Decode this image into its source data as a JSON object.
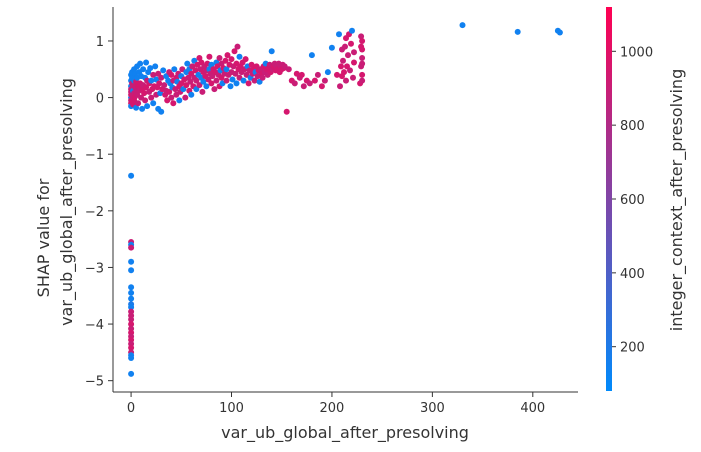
{
  "chart_data": {
    "type": "scatter",
    "title": "",
    "xlabel": "var_ub_global_after_presolving",
    "ylabel_lines": [
      "SHAP value for",
      "var_ub_global_after_presolving"
    ],
    "xlim": [
      -18,
      445
    ],
    "ylim": [
      -5.2,
      1.6
    ],
    "xticks": [
      0,
      100,
      200,
      300,
      400
    ],
    "yticks": [
      1,
      0,
      -1,
      -2,
      -3,
      -4,
      -5
    ],
    "xtick_labels": [
      "0",
      "100",
      "200",
      "300",
      "400"
    ],
    "ytick_labels": [
      "1",
      "0",
      "−1",
      "−2",
      "−3",
      "−4",
      "−5"
    ],
    "grid": false,
    "colorbar": {
      "label": "integer_context_after_presolving",
      "range": [
        80,
        1120
      ],
      "ticks": [
        200,
        400,
        600,
        800,
        1000
      ],
      "tick_labels": [
        "200",
        "400",
        "600",
        "800",
        "1000"
      ],
      "color_low": "#008afb",
      "color_high": "#ff0052"
    },
    "points": [
      [
        0,
        -1.38,
        150
      ],
      [
        0,
        -2.55,
        900
      ],
      [
        0,
        -2.6,
        150
      ],
      [
        0,
        -2.65,
        900
      ],
      [
        0,
        -2.9,
        150
      ],
      [
        0,
        -3.05,
        150
      ],
      [
        0,
        -3.35,
        150
      ],
      [
        0,
        -3.45,
        150
      ],
      [
        0,
        -3.55,
        150
      ],
      [
        0,
        -3.65,
        200
      ],
      [
        0,
        -3.7,
        150
      ],
      [
        0,
        -3.78,
        900
      ],
      [
        0,
        -3.85,
        900
      ],
      [
        0,
        -3.92,
        900
      ],
      [
        0,
        -4.0,
        950
      ],
      [
        0,
        -4.08,
        900
      ],
      [
        0,
        -4.15,
        950
      ],
      [
        0,
        -4.22,
        900
      ],
      [
        0,
        -4.28,
        950
      ],
      [
        0,
        -4.35,
        900
      ],
      [
        0,
        -4.42,
        950
      ],
      [
        0,
        -4.5,
        900
      ],
      [
        0,
        -4.55,
        150
      ],
      [
        0,
        -4.6,
        150
      ],
      [
        0,
        -4.88,
        150
      ],
      [
        0,
        0.0,
        150
      ],
      [
        0,
        0.1,
        900
      ],
      [
        0,
        -0.1,
        950
      ],
      [
        0,
        0.2,
        150
      ],
      [
        0,
        0.3,
        150
      ],
      [
        0,
        0.4,
        150
      ],
      [
        0,
        -0.05,
        900
      ],
      [
        0,
        0.05,
        950
      ],
      [
        0,
        0.15,
        900
      ],
      [
        0,
        -0.15,
        150
      ],
      [
        1,
        0.25,
        900
      ],
      [
        1,
        0.35,
        150
      ],
      [
        1,
        0.05,
        900
      ],
      [
        1,
        -0.08,
        950
      ],
      [
        1,
        0.45,
        150
      ],
      [
        2,
        0.0,
        900
      ],
      [
        2,
        0.12,
        150
      ],
      [
        2,
        0.22,
        900
      ],
      [
        2,
        -0.12,
        950
      ],
      [
        3,
        0.3,
        150
      ],
      [
        3,
        0.08,
        900
      ],
      [
        3,
        -0.05,
        950
      ],
      [
        3,
        0.5,
        150
      ],
      [
        4,
        0.18,
        900
      ],
      [
        4,
        0.02,
        950
      ],
      [
        4,
        0.42,
        150
      ],
      [
        5,
        0.1,
        900
      ],
      [
        5,
        -0.18,
        150
      ],
      [
        5,
        0.28,
        950
      ],
      [
        6,
        0.55,
        150
      ],
      [
        6,
        0.05,
        900
      ],
      [
        6,
        0.35,
        150
      ],
      [
        7,
        0.2,
        950
      ],
      [
        7,
        -0.1,
        900
      ],
      [
        8,
        0.45,
        150
      ],
      [
        8,
        0.12,
        900
      ],
      [
        9,
        0.6,
        150
      ],
      [
        9,
        0.25,
        950
      ],
      [
        10,
        0.0,
        900
      ],
      [
        10,
        0.38,
        150
      ],
      [
        11,
        0.15,
        950
      ],
      [
        11,
        -0.2,
        150
      ],
      [
        12,
        0.5,
        150
      ],
      [
        12,
        0.22,
        900
      ],
      [
        13,
        0.08,
        950
      ],
      [
        14,
        0.35,
        150
      ],
      [
        14,
        -0.05,
        900
      ],
      [
        15,
        0.62,
        150
      ],
      [
        15,
        0.18,
        950
      ],
      [
        16,
        0.3,
        900
      ],
      [
        16,
        -0.15,
        150
      ],
      [
        17,
        0.45,
        150
      ],
      [
        18,
        0.1,
        900
      ],
      [
        18,
        0.25,
        950
      ],
      [
        19,
        0.52,
        150
      ],
      [
        20,
        0.0,
        900
      ],
      [
        20,
        0.3,
        150
      ],
      [
        21,
        0.15,
        950
      ],
      [
        22,
        -0.1,
        150
      ],
      [
        22,
        0.4,
        900
      ],
      [
        23,
        0.2,
        950
      ],
      [
        24,
        0.55,
        150
      ],
      [
        25,
        0.05,
        900
      ],
      [
        25,
        0.32,
        150
      ],
      [
        26,
        0.18,
        950
      ],
      [
        27,
        -0.2,
        150
      ],
      [
        27,
        0.42,
        900
      ],
      [
        28,
        0.25,
        950
      ],
      [
        29,
        0.08,
        150
      ],
      [
        30,
        0.35,
        900
      ],
      [
        30,
        -0.25,
        150
      ],
      [
        31,
        0.15,
        950
      ],
      [
        32,
        0.48,
        150
      ],
      [
        33,
        0.22,
        900
      ],
      [
        34,
        0.05,
        950
      ],
      [
        35,
        0.38,
        150
      ],
      [
        35,
        0.12,
        900
      ],
      [
        36,
        -0.05,
        950
      ],
      [
        37,
        0.3,
        150
      ],
      [
        38,
        0.45,
        900
      ],
      [
        38,
        0.1,
        950
      ],
      [
        39,
        0.25,
        150
      ],
      [
        40,
        0.0,
        900
      ],
      [
        40,
        0.4,
        950
      ],
      [
        41,
        0.18,
        150
      ],
      [
        42,
        0.3,
        900
      ],
      [
        42,
        -0.1,
        950
      ],
      [
        43,
        0.5,
        150
      ],
      [
        44,
        0.15,
        900
      ],
      [
        45,
        0.35,
        950
      ],
      [
        45,
        0.05,
        900
      ],
      [
        46,
        0.28,
        150
      ],
      [
        47,
        0.42,
        900
      ],
      [
        48,
        0.2,
        950
      ],
      [
        48,
        -0.05,
        150
      ],
      [
        49,
        0.1,
        900
      ],
      [
        50,
        0.38,
        150
      ],
      [
        50,
        0.25,
        950
      ],
      [
        51,
        0.5,
        900
      ],
      [
        52,
        0.15,
        150
      ],
      [
        53,
        0.32,
        950
      ],
      [
        54,
        0.0,
        900
      ],
      [
        55,
        0.45,
        150
      ],
      [
        55,
        0.22,
        950
      ],
      [
        56,
        0.6,
        150
      ],
      [
        57,
        0.35,
        900
      ],
      [
        58,
        0.12,
        950
      ],
      [
        58,
        0.5,
        150
      ],
      [
        59,
        0.28,
        900
      ],
      [
        60,
        0.42,
        950
      ],
      [
        60,
        0.05,
        150
      ],
      [
        61,
        0.55,
        900
      ],
      [
        62,
        0.2,
        950
      ],
      [
        63,
        0.65,
        150
      ],
      [
        63,
        0.35,
        900
      ],
      [
        64,
        0.48,
        950
      ],
      [
        65,
        0.15,
        150
      ],
      [
        65,
        0.3,
        900
      ],
      [
        66,
        0.58,
        950
      ],
      [
        67,
        0.4,
        150
      ],
      [
        68,
        0.22,
        900
      ],
      [
        68,
        0.7,
        950
      ],
      [
        69,
        0.5,
        900
      ],
      [
        70,
        0.35,
        150
      ],
      [
        70,
        0.62,
        950
      ],
      [
        71,
        0.1,
        900
      ],
      [
        72,
        0.45,
        950
      ],
      [
        72,
        0.28,
        150
      ],
      [
        73,
        0.55,
        900
      ],
      [
        74,
        0.38,
        950
      ],
      [
        75,
        0.48,
        900
      ],
      [
        75,
        0.2,
        150
      ],
      [
        76,
        0.6,
        950
      ],
      [
        77,
        0.32,
        900
      ],
      [
        78,
        0.5,
        150
      ],
      [
        78,
        0.72,
        950
      ],
      [
        79,
        0.42,
        900
      ],
      [
        80,
        0.25,
        950
      ],
      [
        80,
        0.58,
        150
      ],
      [
        81,
        0.38,
        900
      ],
      [
        82,
        0.5,
        950
      ],
      [
        83,
        0.15,
        900
      ],
      [
        84,
        0.45,
        950
      ],
      [
        85,
        0.62,
        150
      ],
      [
        85,
        0.3,
        900
      ],
      [
        86,
        0.55,
        950
      ],
      [
        87,
        0.4,
        900
      ],
      [
        88,
        0.2,
        950
      ],
      [
        88,
        0.7,
        900
      ],
      [
        89,
        0.48,
        150
      ],
      [
        90,
        0.35,
        950
      ],
      [
        90,
        0.6,
        900
      ],
      [
        91,
        0.25,
        150
      ],
      [
        92,
        0.52,
        950
      ],
      [
        93,
        0.42,
        900
      ],
      [
        94,
        0.65,
        950
      ],
      [
        95,
        0.3,
        900
      ],
      [
        95,
        0.5,
        150
      ],
      [
        96,
        0.75,
        950
      ],
      [
        97,
        0.4,
        900
      ],
      [
        98,
        0.58,
        950
      ],
      [
        99,
        0.2,
        150
      ],
      [
        100,
        0.45,
        900
      ],
      [
        100,
        0.68,
        950
      ],
      [
        101,
        0.32,
        150
      ],
      [
        102,
        0.55,
        900
      ],
      [
        103,
        0.82,
        950
      ],
      [
        104,
        0.42,
        900
      ],
      [
        105,
        0.6,
        950
      ],
      [
        105,
        0.25,
        150
      ],
      [
        106,
        0.9,
        900
      ],
      [
        107,
        0.5,
        950
      ],
      [
        108,
        0.35,
        900
      ],
      [
        108,
        0.72,
        150
      ],
      [
        109,
        0.55,
        950
      ],
      [
        110,
        0.45,
        900
      ],
      [
        111,
        0.62,
        950
      ],
      [
        112,
        0.3,
        150
      ],
      [
        113,
        0.5,
        900
      ],
      [
        114,
        0.68,
        950
      ],
      [
        115,
        0.4,
        900
      ],
      [
        116,
        0.55,
        150
      ],
      [
        117,
        0.25,
        950
      ],
      [
        118,
        0.48,
        900
      ],
      [
        119,
        0.35,
        150
      ],
      [
        120,
        0.58,
        950
      ],
      [
        121,
        0.42,
        900
      ],
      [
        122,
        0.5,
        950
      ],
      [
        123,
        0.3,
        900
      ],
      [
        124,
        0.45,
        150
      ],
      [
        125,
        0.55,
        950
      ],
      [
        126,
        0.38,
        900
      ],
      [
        127,
        0.48,
        950
      ],
      [
        128,
        0.28,
        150
      ],
      [
        129,
        0.5,
        900
      ],
      [
        130,
        0.42,
        950
      ],
      [
        131,
        0.35,
        900
      ],
      [
        132,
        0.55,
        950
      ],
      [
        133,
        0.45,
        900
      ],
      [
        134,
        0.6,
        150
      ],
      [
        135,
        0.5,
        950
      ],
      [
        136,
        0.4,
        900
      ],
      [
        137,
        0.52,
        950
      ],
      [
        138,
        0.58,
        900
      ],
      [
        139,
        0.45,
        950
      ],
      [
        140,
        0.82,
        150
      ],
      [
        141,
        0.5,
        900
      ],
      [
        142,
        0.55,
        950
      ],
      [
        143,
        0.6,
        900
      ],
      [
        144,
        0.48,
        950
      ],
      [
        145,
        0.55,
        900
      ],
      [
        146,
        0.5,
        950
      ],
      [
        147,
        0.6,
        900
      ],
      [
        148,
        0.45,
        950
      ],
      [
        149,
        0.55,
        900
      ],
      [
        150,
        0.5,
        950
      ],
      [
        151,
        0.58,
        900
      ],
      [
        152,
        0.52,
        950
      ],
      [
        153,
        0.55,
        900
      ],
      [
        155,
        -0.25,
        950
      ],
      [
        157,
        0.5,
        900
      ],
      [
        160,
        0.3,
        950
      ],
      [
        163,
        0.25,
        900
      ],
      [
        165,
        0.42,
        950
      ],
      [
        168,
        0.35,
        900
      ],
      [
        170,
        0.4,
        950
      ],
      [
        172,
        0.2,
        900
      ],
      [
        175,
        0.3,
        950
      ],
      [
        178,
        0.25,
        900
      ],
      [
        180,
        0.75,
        150
      ],
      [
        183,
        0.3,
        950
      ],
      [
        186,
        0.4,
        900
      ],
      [
        190,
        0.2,
        950
      ],
      [
        193,
        0.3,
        900
      ],
      [
        196,
        0.45,
        150
      ],
      [
        200,
        0.88,
        150
      ],
      [
        205,
        0.4,
        950
      ],
      [
        207,
        1.12,
        150
      ],
      [
        208,
        0.2,
        900
      ],
      [
        209,
        0.55,
        950
      ],
      [
        210,
        0.85,
        900
      ],
      [
        210,
        0.38,
        950
      ],
      [
        211,
        0.65,
        900
      ],
      [
        212,
        0.45,
        950
      ],
      [
        213,
        0.9,
        900
      ],
      [
        214,
        1.05,
        950
      ],
      [
        214,
        0.3,
        900
      ],
      [
        215,
        0.55,
        950
      ],
      [
        216,
        0.75,
        900
      ],
      [
        217,
        1.12,
        950
      ],
      [
        218,
        0.48,
        900
      ],
      [
        219,
        0.95,
        950
      ],
      [
        220,
        1.18,
        150
      ],
      [
        221,
        0.35,
        900
      ],
      [
        222,
        0.62,
        950
      ],
      [
        222,
        0.8,
        900
      ],
      [
        228,
        0.25,
        950
      ],
      [
        229,
        0.55,
        900
      ],
      [
        229,
        0.9,
        950
      ],
      [
        229,
        1.08,
        900
      ],
      [
        230,
        0.4,
        950
      ],
      [
        230,
        0.7,
        900
      ],
      [
        230,
        1.0,
        950
      ],
      [
        230,
        0.3,
        900
      ],
      [
        230,
        0.85,
        950
      ],
      [
        230,
        0.6,
        900
      ],
      [
        330,
        1.28,
        150
      ],
      [
        385,
        1.16,
        150
      ],
      [
        425,
        1.18,
        150
      ],
      [
        427,
        1.15,
        150
      ]
    ]
  }
}
